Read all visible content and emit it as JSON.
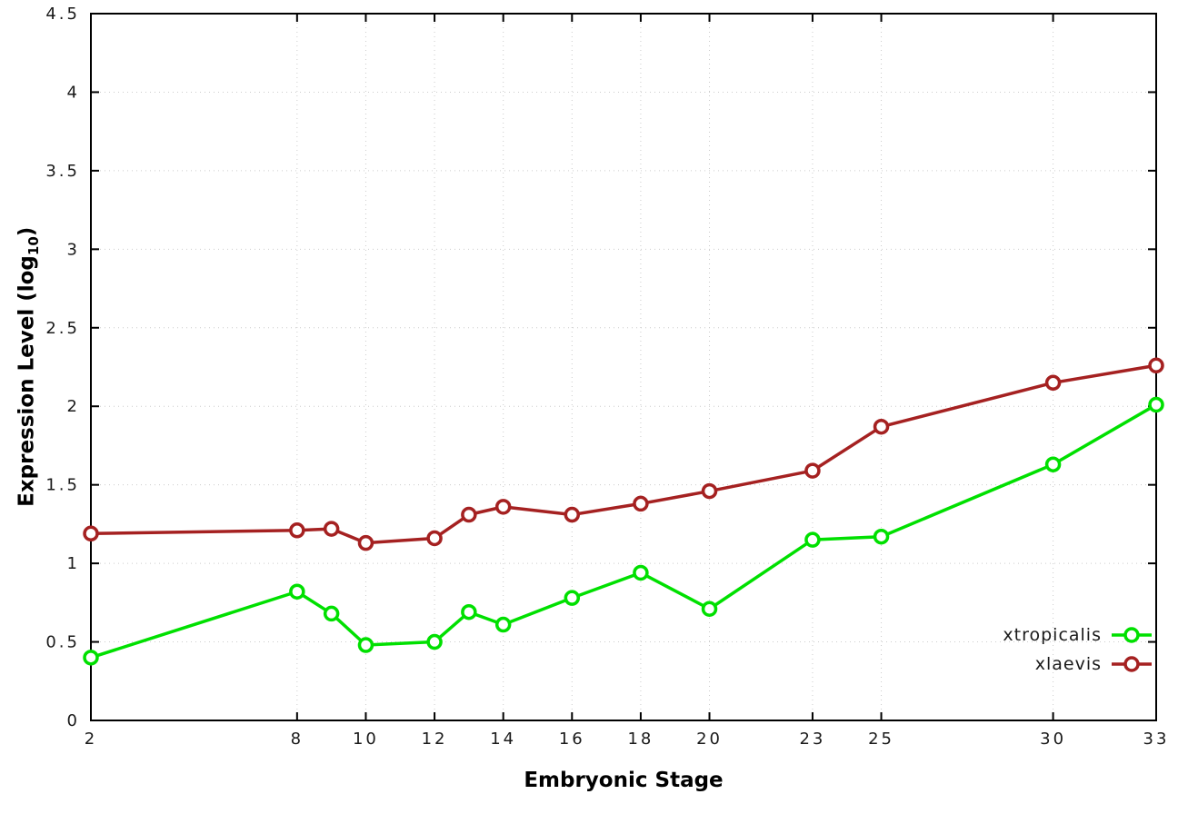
{
  "chart_data": {
    "type": "line",
    "title": "",
    "xlabel": "Embryonic Stage",
    "ylabel": "Expression Level (log10)",
    "ylabel_parts": {
      "prefix": "Expression Level (log",
      "sub": "10",
      "suffix": ")"
    },
    "x": [
      2,
      8,
      9,
      10,
      12,
      13,
      14,
      16,
      18,
      20,
      23,
      25,
      30,
      33
    ],
    "series": [
      {
        "name": "xtropicalis",
        "color": "#00e000",
        "values": [
          0.4,
          0.82,
          0.68,
          0.48,
          0.5,
          0.69,
          0.61,
          0.78,
          0.94,
          0.71,
          1.15,
          1.17,
          1.63,
          2.01
        ]
      },
      {
        "name": "xlaevis",
        "color": "#a52121",
        "values": [
          1.19,
          1.21,
          1.22,
          1.13,
          1.16,
          1.31,
          1.36,
          1.31,
          1.38,
          1.46,
          1.59,
          1.87,
          2.15,
          2.26
        ]
      }
    ],
    "xlim": [
      2,
      33
    ],
    "ylim": [
      0,
      4.5
    ],
    "xticks": [
      2,
      8,
      10,
      12,
      14,
      16,
      18,
      20,
      23,
      25,
      30,
      33
    ],
    "yticks": [
      0,
      0.5,
      1,
      1.5,
      2,
      2.5,
      3,
      3.5,
      4,
      4.5
    ],
    "grid": "dotted",
    "grid_color": "#cccccc",
    "legend_position": "inside bottom-right",
    "marker": "open-circle",
    "background": "#ffffff"
  }
}
